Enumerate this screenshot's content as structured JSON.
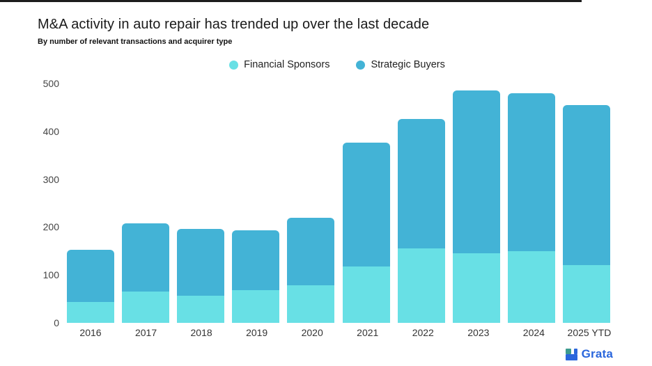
{
  "header": {
    "title": "M&A activity in auto repair has trended up over the last decade",
    "subtitle": "By number of relevant transactions and acquirer type"
  },
  "legend": [
    {
      "label": "Financial Sponsors",
      "color": "#68E0E5"
    },
    {
      "label": "Strategic Buyers",
      "color": "#43B3D6"
    }
  ],
  "chart_data": {
    "type": "bar",
    "stacked": true,
    "title": "M&A activity in auto repair has trended up over the last decade",
    "subtitle": "By number of relevant transactions and acquirer type",
    "categories": [
      "2016",
      "2017",
      "2018",
      "2019",
      "2020",
      "2021",
      "2022",
      "2023",
      "2024",
      "2025 YTD"
    ],
    "series": [
      {
        "name": "Financial Sponsors",
        "color": "#68E0E5",
        "values": [
          44,
          65,
          56,
          68,
          78,
          118,
          155,
          146,
          150,
          121
        ]
      },
      {
        "name": "Strategic Buyers",
        "color": "#43B3D6",
        "values": [
          109,
          143,
          140,
          126,
          141,
          259,
          271,
          340,
          330,
          334
        ]
      }
    ],
    "totals": [
      153,
      208,
      196,
      194,
      219,
      377,
      426,
      486,
      480,
      455
    ],
    "xlabel": "",
    "ylabel": "",
    "ylim": [
      0,
      500
    ],
    "yticks": [
      0,
      100,
      200,
      300,
      400,
      500
    ],
    "grid": false,
    "legend_position": "top-center"
  },
  "branding": {
    "logo_text": "Grata",
    "logo_color": "#2A66DC",
    "logo_mark_teal": "#3D9B8F",
    "logo_mark_blue": "#2A66DC"
  }
}
